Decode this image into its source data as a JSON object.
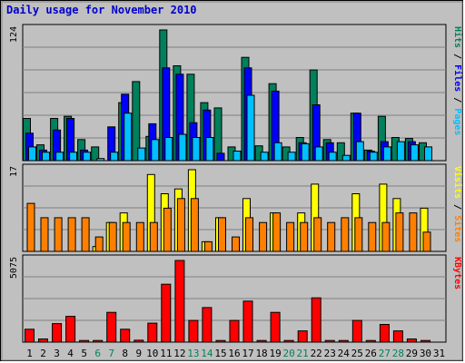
{
  "chart_data": {
    "type": "bar",
    "title": "Daily usage for November 2010",
    "days": [
      "1",
      "2",
      "3",
      "4",
      "5",
      "6",
      "7",
      "8",
      "9",
      "10",
      "11",
      "12",
      "13",
      "14",
      "15",
      "16",
      "17",
      "18",
      "19",
      "20",
      "21",
      "22",
      "23",
      "24",
      "25",
      "26",
      "27",
      "28",
      "29",
      "30",
      "31"
    ],
    "weekend_days": [
      "6",
      "7",
      "13",
      "14",
      "20",
      "21",
      "27",
      "28"
    ],
    "panels": [
      {
        "key": "pages_files_hits",
        "ymax_label": "124",
        "ylim": [
          0,
          124
        ],
        "right_label": [
          "Pages",
          "Files",
          "Hits"
        ],
        "series": [
          {
            "name": "Hits",
            "color": "#00805c",
            "values": [
              40,
              15,
              40,
              42,
              20,
              13,
              0,
              55,
              75,
              23,
              124,
              90,
              82,
              55,
              50,
              13,
              98,
              14,
              73,
              13,
              22,
              86,
              20,
              17,
              45,
              10,
              42,
              22,
              21,
              17,
              0
            ]
          },
          {
            "name": "Files",
            "color": "#0000ff",
            "values": [
              26,
              10,
              29,
              40,
              10,
              0,
              32,
              63,
              0,
              35,
              88,
              82,
              36,
              48,
              7,
              0,
              88,
              0,
              66,
              0,
              17,
              53,
              17,
              0,
              45,
              9,
              18,
              0,
              18,
              0,
              0
            ]
          },
          {
            "name": "Pages",
            "color": "#00c0ff",
            "values": [
              13,
              8,
              8,
              8,
              8,
              2,
              8,
              45,
              12,
              20,
              22,
              25,
              22,
              22,
              0,
              9,
              62,
              8,
              17,
              8,
              16,
              13,
              8,
              5,
              18,
              8,
              13,
              18,
              15,
              13,
              0
            ]
          }
        ]
      },
      {
        "key": "visits_sites",
        "ymax_label": "17",
        "ylim": [
          0,
          17
        ],
        "right_label": [
          "Sites",
          "Visits"
        ],
        "series": [
          {
            "name": "Visits",
            "color": "#ffff00",
            "values": [
              0,
              0,
              0,
              0,
              0,
              1,
              6,
              8,
              0,
              16,
              12,
              13,
              17,
              2,
              7,
              0,
              11,
              0,
              8,
              0,
              8,
              14,
              0,
              0,
              12,
              0,
              14,
              11,
              0,
              9,
              0
            ]
          },
          {
            "name": "Sites",
            "color": "#ff8000",
            "values": [
              10,
              7,
              7,
              7,
              7,
              3,
              6,
              6,
              6,
              6,
              9,
              11,
              11,
              2,
              7,
              3,
              7,
              6,
              8,
              6,
              6,
              7,
              6,
              7,
              7,
              6,
              6,
              8,
              8,
              4,
              0
            ]
          }
        ]
      },
      {
        "key": "kbytes",
        "ymax_label": "5075",
        "ylim": [
          0,
          5075
        ],
        "right_label": [
          "KBytes"
        ],
        "series": [
          {
            "name": "KBytes",
            "color": "#ff0000",
            "values": [
              800,
              200,
              1150,
              1600,
              100,
              100,
              1850,
              800,
              120,
              1180,
              3600,
              5075,
              1350,
              2150,
              100,
              1350,
              2550,
              100,
              1850,
              100,
              700,
              2750,
              100,
              100,
              1350,
              100,
              1100,
              700,
              200,
              100,
              0
            ]
          }
        ]
      }
    ]
  }
}
